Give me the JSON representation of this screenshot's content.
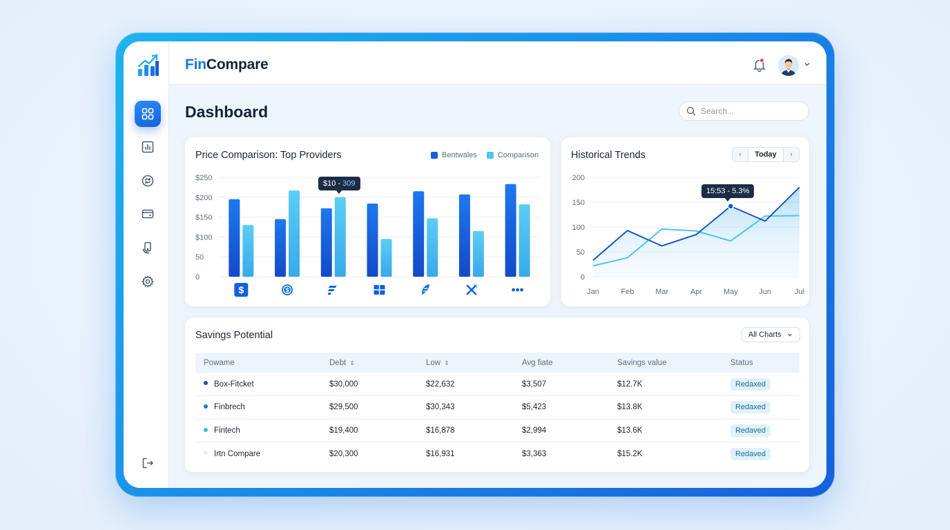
{
  "app": {
    "brand_prefix": "Fin",
    "brand_suffix": "Compare"
  },
  "page": {
    "title": "Dashboard"
  },
  "search": {
    "placeholder": "Search..."
  },
  "sidebar": {
    "items": [
      {
        "icon": "grid-icon",
        "active": true
      },
      {
        "icon": "bar-chart-icon",
        "active": false
      },
      {
        "icon": "exchange-icon",
        "active": false
      },
      {
        "icon": "wallet-icon",
        "active": false
      },
      {
        "icon": "mobile-payment-icon",
        "active": false
      },
      {
        "icon": "gear-icon",
        "active": false
      }
    ],
    "bottom_icon": "logout-icon"
  },
  "price_comparison": {
    "title": "Price Comparison: Top Providers",
    "legend": [
      "Bentwales",
      "Comparison"
    ],
    "tooltip": {
      "main": "$10",
      "sep": "-",
      "dim": "309"
    },
    "provider_icons": [
      "dollar-square-icon",
      "dollar-circle-icon",
      "stripes-icon",
      "window-icon",
      "leaf-icon",
      "x-icon",
      "more-icon"
    ]
  },
  "historical": {
    "title": "Historical Trends",
    "today_label": "Today",
    "tooltip": "15:53 - 5.3%"
  },
  "savings": {
    "title": "Savings Potential",
    "filter_label": "All Charts",
    "columns": [
      "Powame",
      "Debt",
      "Low",
      "Avg fiate",
      "Savings value",
      "Status"
    ],
    "rows": [
      {
        "name": "Box-Fitcket",
        "debt": "$30,000",
        "low": "$22,632",
        "avg": "$3,507",
        "savings": "$12.7K",
        "status": "Redaxed",
        "dot": "#1a4fb8"
      },
      {
        "name": "Finbrech",
        "debt": "$29,500",
        "low": "$30,343",
        "avg": "$5,423",
        "savings": "$13.8K",
        "status": "Redaxed",
        "dot": "#1676e0"
      },
      {
        "name": "Fintech",
        "debt": "$19,400",
        "low": "$16,878",
        "avg": "$2,994",
        "savings": "$13.6K",
        "status": "Redaved",
        "dot": "#3fb6ea"
      },
      {
        "name": "Irtn Compare",
        "debt": "$20,300",
        "low": "$16,931",
        "avg": "$3,363",
        "savings": "$15.2K",
        "status": "Redaved",
        "dot": "#e3eef8"
      }
    ]
  },
  "colors": {
    "primary": "#1560db",
    "secondary": "#4cc3f2",
    "accent": "#1676e0"
  },
  "chart_data": [
    {
      "type": "bar",
      "title": "Price Comparison: Top Providers",
      "categories": [
        "1",
        "2",
        "3",
        "4",
        "5",
        "6",
        "7"
      ],
      "series": [
        {
          "name": "Bentwales",
          "values": [
            195,
            145,
            172,
            184,
            215,
            207,
            233
          ]
        },
        {
          "name": "Comparison",
          "values": [
            130,
            217,
            200,
            95,
            147,
            115,
            182
          ]
        }
      ],
      "ylim": [
        0,
        250
      ],
      "yticks": [
        "$250",
        "$200",
        "$150",
        "$100",
        "50",
        "0"
      ],
      "grid": true,
      "legend": "top-right"
    },
    {
      "type": "area",
      "title": "Historical Trends",
      "categories": [
        "Jan",
        "Feb",
        "Mar",
        "Apr",
        "May",
        "Jun",
        "Jul"
      ],
      "series": [
        {
          "values": [
            33,
            93,
            62,
            85,
            142,
            112,
            180
          ]
        },
        {
          "values": [
            22,
            38,
            96,
            92,
            72,
            122,
            123
          ]
        }
      ],
      "ylim": [
        0,
        200
      ],
      "yticks": [
        "200",
        "150",
        "100",
        "50",
        "0"
      ],
      "grid": true
    }
  ]
}
